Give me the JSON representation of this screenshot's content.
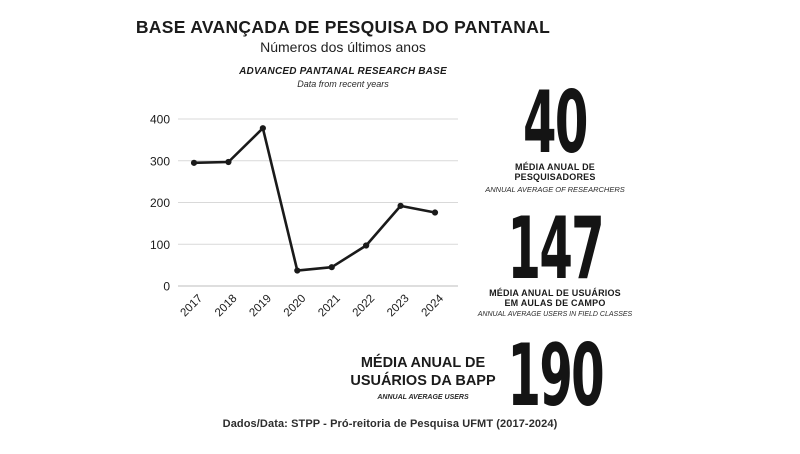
{
  "header": {
    "title": "BASE AVANÇADA DE PESQUISA DO PANTANAL",
    "subtitle": "Números dos últimos anos",
    "title_en": "ADVANCED PANTANAL RESEARCH BASE",
    "subtitle_en": "Data from recent years"
  },
  "chart_data": {
    "type": "line",
    "x": [
      "2017",
      "2018",
      "2019",
      "2020",
      "2021",
      "2022",
      "2023",
      "2024"
    ],
    "values": [
      295,
      297,
      378,
      37,
      45,
      97,
      192,
      176
    ],
    "title": "",
    "xlabel": "",
    "ylabel": "",
    "ylim": [
      0,
      400
    ],
    "yticks": [
      0,
      100,
      200,
      300,
      400
    ],
    "grid": true,
    "legend": "none",
    "line_color": "#1a1a1a",
    "marker": "circle"
  },
  "stats": [
    {
      "value": "40",
      "label_line1": "MÉDIA ANUAL DE",
      "label_line2": "PESQUISADORES",
      "label_en": "ANNUAL AVERAGE OF RESEARCHERS"
    },
    {
      "value": "147",
      "label_line1": "MÉDIA ANUAL DE USUÁRIOS",
      "label_line2": "EM AULAS DE CAMPO",
      "label_en": "ANNUAL AVERAGE USERS IN FIELD CLASSES"
    },
    {
      "value": "190",
      "label_line1": "MÉDIA ANUAL DE",
      "label_line2": "USUÁRIOS DA BAPP",
      "label_en": "ANNUAL AVERAGE USERS"
    }
  ],
  "footer": {
    "source": "Dados/Data: STPP - Pró-reitoria de Pesquisa UFMT (2017-2024)"
  },
  "colors": {
    "text": "#1b1b1b",
    "grid": "#d9d9d9",
    "axis": "#bdbdbd",
    "line": "#1a1a1a",
    "background": "#ffffff"
  }
}
